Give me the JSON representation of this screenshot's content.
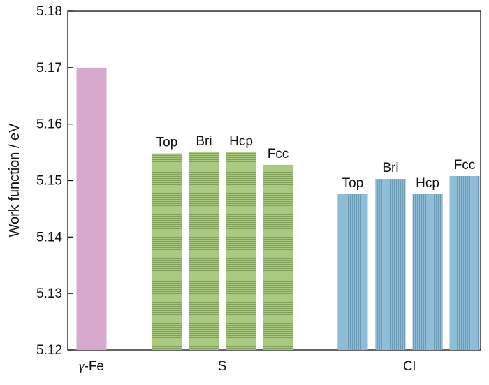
{
  "chart_data": {
    "type": "bar",
    "ylabel": "Work function / eV",
    "ylim": [
      5.12,
      5.18
    ],
    "yticks": [
      "5.12",
      "5.13",
      "5.14",
      "5.15",
      "5.16",
      "5.17",
      "5.18"
    ],
    "grid": false,
    "groups": [
      {
        "name": "γ-Fe",
        "color": "#d8a9cf",
        "bars": [
          {
            "label": "",
            "value": 5.17
          }
        ]
      },
      {
        "name": "S",
        "color": "#a8c97f",
        "bars": [
          {
            "label": "Top",
            "value": 5.1548
          },
          {
            "label": "Bri",
            "value": 5.155
          },
          {
            "label": "Hcp",
            "value": 5.155
          },
          {
            "label": "Fcc",
            "value": 5.1528
          }
        ]
      },
      {
        "name": "Cl",
        "color": "#8fbdd7",
        "bars": [
          {
            "label": "Top",
            "value": 5.1476
          },
          {
            "label": "Bri",
            "value": 5.1503
          },
          {
            "label": "Hcp",
            "value": 5.1476
          },
          {
            "label": "Fcc",
            "value": 5.1508
          }
        ]
      }
    ]
  }
}
